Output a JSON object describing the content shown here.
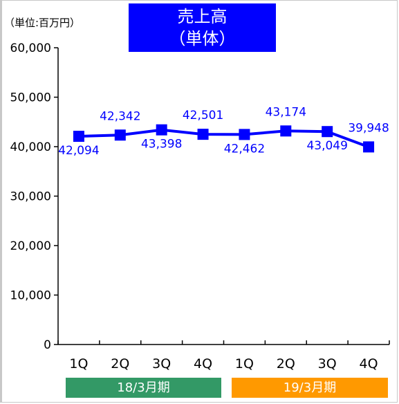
{
  "unit_label": "（単位:百万円）",
  "title_line1": "売上高",
  "title_line2": "（単体）",
  "colors": {
    "series": "#0000ff",
    "title_bg": "#0000ff",
    "period1_bg": "#339966",
    "period2_bg": "#ff9900"
  },
  "periods": [
    {
      "label": "18/3月期"
    },
    {
      "label": "19/3月期"
    }
  ],
  "chart_data": {
    "type": "line",
    "title": "売上高（単体）",
    "ylabel": "（単位:百万円）",
    "categories": [
      "1Q",
      "2Q",
      "3Q",
      "4Q",
      "1Q",
      "2Q",
      "3Q",
      "4Q"
    ],
    "series": [
      {
        "values": [
          42094,
          42342,
          43398,
          42501,
          42462,
          43174,
          43049,
          39948
        ],
        "labels": [
          "42,094",
          "42,342",
          "43,398",
          "42,501",
          "42,462",
          "43,174",
          "43,049",
          "39,948"
        ]
      }
    ],
    "ylim": [
      0,
      60000
    ],
    "yticks": [
      0,
      10000,
      20000,
      30000,
      40000,
      50000,
      60000
    ],
    "ytick_labels": [
      "0",
      "10,000",
      "20,000",
      "30,000",
      "40,000",
      "50,000",
      "60,000"
    ],
    "marker": "square",
    "grid": false
  }
}
